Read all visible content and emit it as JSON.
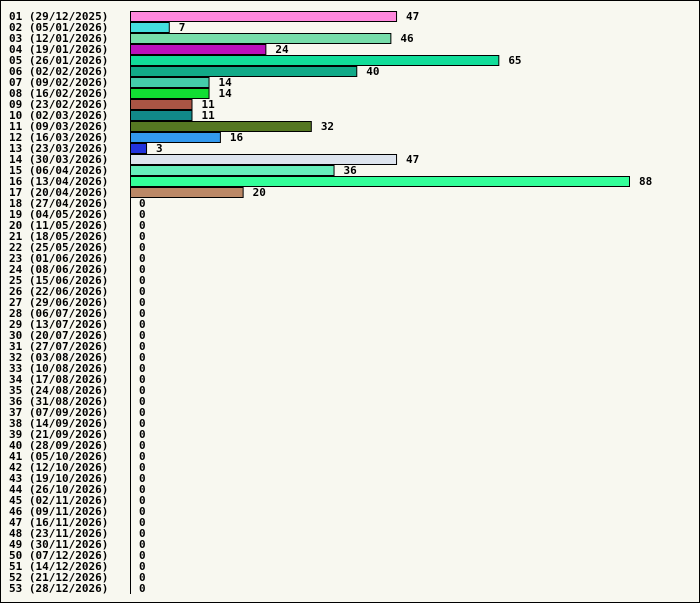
{
  "chart_data": {
    "type": "bar",
    "orientation": "horizontal",
    "title": "",
    "xlabel": "",
    "ylabel": "",
    "grid": false,
    "categories": [
      "01 (29/12/2025)",
      "02 (05/01/2026)",
      "03 (12/01/2026)",
      "04 (19/01/2026)",
      "05 (26/01/2026)",
      "06 (02/02/2026)",
      "07 (09/02/2026)",
      "08 (16/02/2026)",
      "09 (23/02/2026)",
      "10 (02/03/2026)",
      "11 (09/03/2026)",
      "12 (16/03/2026)",
      "13 (23/03/2026)",
      "14 (30/03/2026)",
      "15 (06/04/2026)",
      "16 (13/04/2026)",
      "17 (20/04/2026)",
      "18 (27/04/2026)",
      "19 (04/05/2026)",
      "20 (11/05/2026)",
      "21 (18/05/2026)",
      "22 (25/05/2026)",
      "23 (01/06/2026)",
      "24 (08/06/2026)",
      "25 (15/06/2026)",
      "26 (22/06/2026)",
      "27 (29/06/2026)",
      "28 (06/07/2026)",
      "29 (13/07/2026)",
      "30 (20/07/2026)",
      "31 (27/07/2026)",
      "32 (03/08/2026)",
      "33 (10/08/2026)",
      "34 (17/08/2026)",
      "35 (24/08/2026)",
      "36 (31/08/2026)",
      "37 (07/09/2026)",
      "38 (14/09/2026)",
      "39 (21/09/2026)",
      "40 (28/09/2026)",
      "41 (05/10/2026)",
      "42 (12/10/2026)",
      "43 (19/10/2026)",
      "44 (26/10/2026)",
      "45 (02/11/2026)",
      "46 (09/11/2026)",
      "47 (16/11/2026)",
      "48 (23/11/2026)",
      "49 (30/11/2026)",
      "50 (07/12/2026)",
      "51 (14/12/2026)",
      "52 (21/12/2026)",
      "53 (28/12/2026)"
    ],
    "values": [
      47,
      7,
      46,
      24,
      65,
      40,
      14,
      14,
      11,
      11,
      32,
      16,
      3,
      47,
      36,
      88,
      20,
      0,
      0,
      0,
      0,
      0,
      0,
      0,
      0,
      0,
      0,
      0,
      0,
      0,
      0,
      0,
      0,
      0,
      0,
      0,
      0,
      0,
      0,
      0,
      0,
      0,
      0,
      0,
      0,
      0,
      0,
      0,
      0,
      0,
      0,
      0,
      0
    ],
    "colors": [
      "#ff88dd",
      "#44dddd",
      "#77ddaa",
      "#bb11bb",
      "#11dd99",
      "#11aa88",
      "#44ccaa",
      "#11dd33",
      "#aa5544",
      "#118888",
      "#557722",
      "#3399ee",
      "#2233dd",
      "#dde4ee",
      "#66eebb",
      "#33ff99",
      "#bb8866"
    ],
    "default_color": "#cccccc",
    "xlim": [
      0,
      88
    ],
    "legend": "none"
  }
}
